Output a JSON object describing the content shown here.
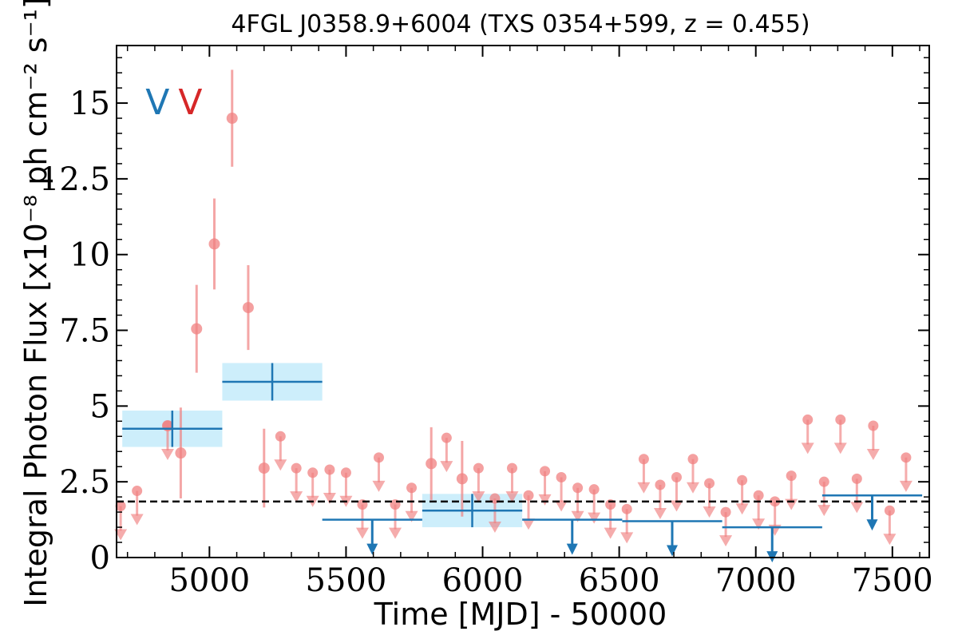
{
  "chart_data": {
    "type": "scatter",
    "title": "4FGL J0358.9+6004 (TXS 0354+599, z = 0.455)",
    "xlabel": "Time [MJD] - 50000",
    "ylabel": "Integral Photon Flux [x10⁻⁸ ph cm⁻² s⁻¹]",
    "xlim": [
      4660,
      7635
    ],
    "ylim": [
      0,
      16.9
    ],
    "x_ticks": [
      5000,
      5500,
      6000,
      6500,
      7000,
      7500
    ],
    "y_ticks": [
      0,
      2.5,
      5,
      7.5,
      10,
      12.5,
      15
    ],
    "y_tick_labels": [
      "0",
      "2.5",
      "5",
      "7.5",
      "10",
      "12.5",
      "15"
    ],
    "reference_line": 1.85,
    "markers": [
      {
        "label": "V",
        "x": 4810,
        "y": 15.0,
        "color": "#1f77b4"
      },
      {
        "label": "V",
        "x": 4930,
        "y": 15.0,
        "color": "#d62728"
      }
    ],
    "series": [
      {
        "name": "",
        "color": "#f08080",
        "detections": [
          {
            "x": 4847,
            "y": 4.35,
            "err": 0
          },
          {
            "x": 4895,
            "y": 3.45,
            "err": 1.5
          },
          {
            "x": 4953,
            "y": 7.55,
            "err": 1.45
          },
          {
            "x": 5018,
            "y": 10.35,
            "err": 1.5
          },
          {
            "x": 5083,
            "y": 14.5,
            "err": 1.6
          },
          {
            "x": 5142,
            "y": 8.25,
            "err": 1.4
          },
          {
            "x": 5200,
            "y": 2.95,
            "err": 1.3
          },
          {
            "x": 5812,
            "y": 3.1,
            "err": 1.2
          },
          {
            "x": 5925,
            "y": 2.6,
            "err": 1.25
          }
        ],
        "upper_limits": [
          {
            "x": 4675,
            "y": 1.7
          },
          {
            "x": 4735,
            "y": 2.2
          },
          {
            "x": 4847,
            "y": 4.35
          },
          {
            "x": 5260,
            "y": 4.0
          },
          {
            "x": 5318,
            "y": 2.95
          },
          {
            "x": 5378,
            "y": 2.8
          },
          {
            "x": 5440,
            "y": 2.9
          },
          {
            "x": 5500,
            "y": 2.8
          },
          {
            "x": 5560,
            "y": 1.75
          },
          {
            "x": 5620,
            "y": 3.3
          },
          {
            "x": 5680,
            "y": 1.75
          },
          {
            "x": 5740,
            "y": 2.3
          },
          {
            "x": 5868,
            "y": 3.95
          },
          {
            "x": 5985,
            "y": 2.95
          },
          {
            "x": 6045,
            "y": 1.95
          },
          {
            "x": 6108,
            "y": 2.95
          },
          {
            "x": 6168,
            "y": 2.05
          },
          {
            "x": 6228,
            "y": 2.85
          },
          {
            "x": 6288,
            "y": 2.65
          },
          {
            "x": 6348,
            "y": 2.3
          },
          {
            "x": 6408,
            "y": 2.25
          },
          {
            "x": 6468,
            "y": 1.75
          },
          {
            "x": 6528,
            "y": 1.6
          },
          {
            "x": 6590,
            "y": 3.25
          },
          {
            "x": 6650,
            "y": 2.4
          },
          {
            "x": 6710,
            "y": 2.65
          },
          {
            "x": 6770,
            "y": 3.25
          },
          {
            "x": 6830,
            "y": 2.45
          },
          {
            "x": 6890,
            "y": 1.5
          },
          {
            "x": 6950,
            "y": 2.55
          },
          {
            "x": 7010,
            "y": 2.05
          },
          {
            "x": 7070,
            "y": 1.85
          },
          {
            "x": 7130,
            "y": 2.7
          },
          {
            "x": 7190,
            "y": 4.55
          },
          {
            "x": 7250,
            "y": 2.5
          },
          {
            "x": 7310,
            "y": 4.55
          },
          {
            "x": 7370,
            "y": 2.6
          },
          {
            "x": 7430,
            "y": 4.35
          },
          {
            "x": 7490,
            "y": 1.55
          },
          {
            "x": 7550,
            "y": 3.3
          }
        ]
      },
      {
        "name": "",
        "color": "#1f77b4",
        "band_color": "#cdeefb",
        "detections": [
          {
            "x": 4864,
            "xerr": 183,
            "y": 4.25,
            "yerr": 0.6
          },
          {
            "x": 5230,
            "xerr": 183,
            "y": 5.8,
            "yerr": 0.62
          },
          {
            "x": 5962,
            "xerr": 183,
            "y": 1.55,
            "yerr": 0.55
          }
        ],
        "upper_limits": [
          {
            "x": 5596,
            "xerr": 183,
            "y": 1.25
          },
          {
            "x": 6328,
            "xerr": 183,
            "y": 1.25
          },
          {
            "x": 6694,
            "xerr": 183,
            "y": 1.2
          },
          {
            "x": 7060,
            "xerr": 183,
            "y": 1.0
          },
          {
            "x": 7426,
            "xerr": 183,
            "y": 2.05
          }
        ]
      }
    ]
  }
}
